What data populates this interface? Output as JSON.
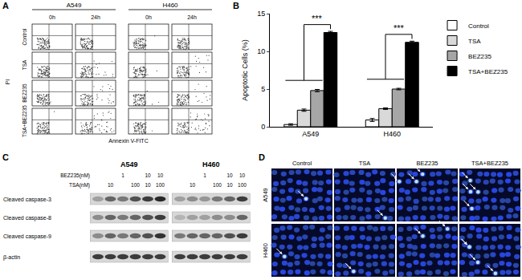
{
  "chart_data": {
    "type": "bar",
    "label": "B",
    "categories": [
      "A549",
      "H460"
    ],
    "y_label": "Apoptotic Cells (%)",
    "ylim": [
      0,
      15
    ],
    "yticks": [
      0,
      5,
      10,
      15
    ],
    "legend": "upper right",
    "series": [
      {
        "name": "Control",
        "color": "#ffffff",
        "values": [
          0.3,
          0.9
        ],
        "errors": [
          0.1,
          0.2
        ]
      },
      {
        "name": "TSA",
        "color": "#d9d9d9",
        "values": [
          2.2,
          2.4
        ],
        "errors": [
          0.15,
          0.1
        ]
      },
      {
        "name": "BEZ235",
        "color": "#a6a6a6",
        "values": [
          4.8,
          5.0
        ],
        "errors": [
          0.15,
          0.1
        ]
      },
      {
        "name": "TSA+BEZ235",
        "color": "#000000",
        "values": [
          12.5,
          11.2
        ],
        "errors": [
          0.15,
          0.15
        ]
      }
    ],
    "significance": [
      {
        "category": "A549",
        "text": "***"
      },
      {
        "category": "H460",
        "text": "***"
      }
    ]
  },
  "panel_a": {
    "label": "A",
    "cell_lines": [
      "A549",
      "H460"
    ],
    "times": [
      "0h",
      "24h"
    ],
    "rows": [
      "Control",
      "TSA",
      "BEZ235",
      "TSA+BEZ235"
    ],
    "x_label": "Annexin V-FITC",
    "y_label": "PI"
  },
  "panel_c": {
    "label": "C",
    "cell_lines": [
      "A549",
      "H460"
    ],
    "treatments": [
      {
        "name": "BEZ235(nM)",
        "lanes": [
          null,
          null,
          "1",
          null,
          "10",
          "10"
        ]
      },
      {
        "name": "TSA(nM)",
        "lanes": [
          null,
          "10",
          null,
          "100",
          "10",
          "100"
        ]
      }
    ],
    "blots": [
      {
        "name": "Cleaved caspase-3",
        "band_intensity": [
          [
            0.3,
            0.6,
            0.5,
            0.7,
            0.8,
            0.9
          ],
          [
            0.3,
            0.4,
            0.35,
            0.5,
            0.6,
            0.8
          ]
        ]
      },
      {
        "name": "Cleaved caspase-8",
        "band_intensity": [
          [
            0.4,
            0.6,
            0.5,
            0.6,
            0.7,
            0.8
          ],
          [
            0.2,
            0.3,
            0.3,
            0.4,
            0.4,
            0.6
          ]
        ]
      },
      {
        "name": "Cleaved caspase-9",
        "band_intensity": [
          [
            0.4,
            0.6,
            0.5,
            0.6,
            0.7,
            0.85
          ],
          [
            0.5,
            0.6,
            0.6,
            0.6,
            0.7,
            0.8
          ]
        ]
      },
      {
        "name": "β-actin",
        "band_intensity": [
          [
            0.8,
            0.8,
            0.8,
            0.8,
            0.8,
            0.8
          ],
          [
            0.8,
            0.8,
            0.8,
            0.8,
            0.8,
            0.8
          ]
        ]
      }
    ]
  },
  "panel_d": {
    "label": "D",
    "columns": [
      "Control",
      "TSA",
      "BEZ235",
      "TSA+BEZ235"
    ],
    "rows": [
      {
        "name": "A549",
        "arrows": [
          1,
          1,
          3,
          4
        ]
      },
      {
        "name": "H460",
        "arrows": [
          1,
          1,
          2,
          4
        ]
      }
    ]
  }
}
